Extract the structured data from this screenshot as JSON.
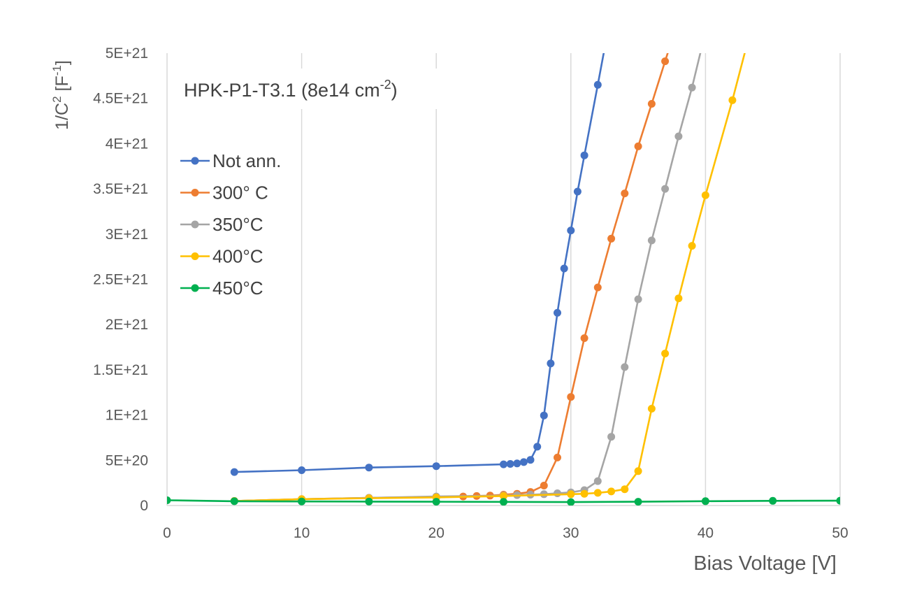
{
  "chart_data": {
    "type": "line",
    "title": "",
    "annotation": {
      "main": "HPK-P1-T3.1 (8e14 cm",
      "sup": "-2",
      "close": ")"
    },
    "xlabel": "Bias Voltage [V]",
    "ylabel": {
      "main": "1/C",
      "sup1": "2",
      "mid": " [F",
      "sup2": "-1",
      "close": "]"
    },
    "xlim": [
      0,
      50
    ],
    "ylim": [
      0,
      5e+21
    ],
    "x_ticks": [
      0,
      10,
      20,
      30,
      40,
      50
    ],
    "x_tick_labels": [
      "0",
      "10",
      "20",
      "30",
      "40",
      "50"
    ],
    "y_ticks": [
      0,
      5e+20,
      1e+21,
      1.5e+21,
      2e+21,
      2.5e+21,
      3e+21,
      3.5e+21,
      4e+21,
      4.5e+21,
      5e+21
    ],
    "y_tick_labels": [
      "0",
      "5E+20",
      "1E+21",
      "1.5E+21",
      "2E+21",
      "2.5E+21",
      "3E+21",
      "3.5E+21",
      "4E+21",
      "4.5E+21",
      "5E+21"
    ],
    "grid": "vertical",
    "legend_position": "top-left",
    "series": [
      {
        "name": "Not ann.",
        "color": "#4472C4",
        "points": [
          [
            5,
            3.7e+20
          ],
          [
            10,
            3.9e+20
          ],
          [
            15,
            4.2e+20
          ],
          [
            20,
            4.35e+20
          ],
          [
            25,
            4.55e+20
          ],
          [
            25.5,
            4.6e+20
          ],
          [
            26,
            4.65e+20
          ],
          [
            26.5,
            4.8e+20
          ],
          [
            27,
            5.05e+20
          ],
          [
            27.5,
            6.5e+20
          ],
          [
            28,
            9.95e+20
          ],
          [
            28.5,
            1.57e+21
          ],
          [
            29,
            2.13e+21
          ],
          [
            29.5,
            2.62e+21
          ],
          [
            30,
            3.04e+21
          ],
          [
            30.5,
            3.47e+21
          ],
          [
            31,
            3.87e+21
          ],
          [
            32,
            4.65e+21
          ],
          [
            32.5,
            5.05e+21
          ]
        ],
        "last_point_off_chart": true
      },
      {
        "name": "300° C",
        "color": "#ED7D31",
        "points": [
          [
            5,
            5e+19
          ],
          [
            10,
            7e+19
          ],
          [
            15,
            8.5e+19
          ],
          [
            20,
            9.5e+19
          ],
          [
            22,
            1e+20
          ],
          [
            23,
            1.05e+20
          ],
          [
            24,
            1.1e+20
          ],
          [
            25,
            1.2e+20
          ],
          [
            26,
            1.3e+20
          ],
          [
            27,
            1.5e+20
          ],
          [
            28,
            2.2e+20
          ],
          [
            29,
            5.3e+20
          ],
          [
            30,
            1.2e+21
          ],
          [
            31,
            1.85e+21
          ],
          [
            32,
            2.41e+21
          ],
          [
            33,
            2.95e+21
          ],
          [
            34,
            3.45e+21
          ],
          [
            35,
            3.97e+21
          ],
          [
            36,
            4.44e+21
          ],
          [
            37,
            4.91e+21
          ],
          [
            37.3,
            5.05e+21
          ]
        ],
        "last_point_off_chart": true
      },
      {
        "name": "350°C",
        "color": "#A5A5A5",
        "points": [
          [
            5,
            5e+19
          ],
          [
            10,
            7e+19
          ],
          [
            15,
            8.5e+19
          ],
          [
            20,
            1e+20
          ],
          [
            25,
            1.1e+20
          ],
          [
            26,
            1.15e+20
          ],
          [
            27,
            1.2e+20
          ],
          [
            28,
            1.25e+20
          ],
          [
            29,
            1.35e+20
          ],
          [
            30,
            1.45e+20
          ],
          [
            31,
            1.7e+20
          ],
          [
            32,
            2.7e+20
          ],
          [
            33,
            7.6e+20
          ],
          [
            34,
            1.53e+21
          ],
          [
            35,
            2.28e+21
          ],
          [
            36,
            2.93e+21
          ],
          [
            37,
            3.5e+21
          ],
          [
            38,
            4.08e+21
          ],
          [
            39,
            4.62e+21
          ],
          [
            39.7,
            5.05e+21
          ]
        ],
        "last_point_off_chart": true
      },
      {
        "name": "400°C",
        "color": "#FFC000",
        "points": [
          [
            5,
            5e+19
          ],
          [
            10,
            7e+19
          ],
          [
            15,
            8e+19
          ],
          [
            20,
            9e+19
          ],
          [
            25,
            1.05e+20
          ],
          [
            30,
            1.25e+20
          ],
          [
            31,
            1.3e+20
          ],
          [
            32,
            1.4e+20
          ],
          [
            33,
            1.55e+20
          ],
          [
            34,
            1.8e+20
          ],
          [
            35,
            3.8e+20
          ],
          [
            36,
            1.07e+21
          ],
          [
            37,
            1.68e+21
          ],
          [
            38,
            2.29e+21
          ],
          [
            39,
            2.87e+21
          ],
          [
            40,
            3.43e+21
          ],
          [
            42,
            4.48e+21
          ],
          [
            43,
            5.05e+21
          ]
        ],
        "last_point_off_chart": true
      },
      {
        "name": "450°C",
        "color": "#00B050",
        "points": [
          [
            0,
            5.8e+19
          ],
          [
            5,
            4.7e+19
          ],
          [
            10,
            4.5e+19
          ],
          [
            15,
            4.3e+19
          ],
          [
            20,
            4.2e+19
          ],
          [
            25,
            4e+19
          ],
          [
            30,
            3.8e+19
          ],
          [
            35,
            4.2e+19
          ],
          [
            40,
            4.8e+19
          ],
          [
            45,
            5.2e+19
          ],
          [
            50,
            5.3e+19
          ]
        ],
        "last_point_off_chart": false
      }
    ]
  }
}
